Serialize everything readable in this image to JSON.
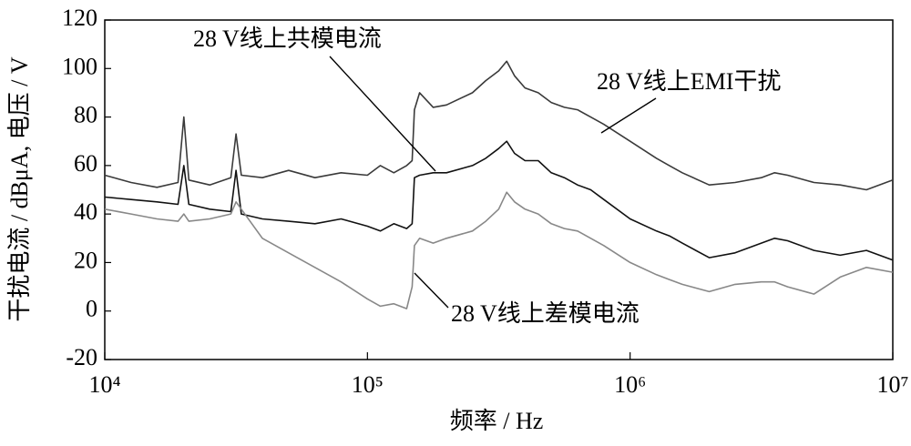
{
  "chart_data": {
    "type": "line",
    "x_label": "频率 / Hz",
    "y_label": "干扰电流 / dBμA, 电压 / V",
    "x_log": true,
    "xlim": [
      10000,
      10000000
    ],
    "xticks": [
      {
        "value": 10000,
        "label": "10⁴"
      },
      {
        "value": 100000,
        "label": "10⁵"
      },
      {
        "value": 1000000,
        "label": "10⁶"
      },
      {
        "value": 10000000,
        "label": "10⁷"
      }
    ],
    "ylim": [
      -20,
      120
    ],
    "yticks": [
      -20,
      0,
      20,
      40,
      60,
      80,
      100,
      120
    ],
    "grid": false,
    "x": [
      10000,
      12600,
      15800,
      19000,
      20000,
      20900,
      25100,
      30200,
      31600,
      33100,
      39800,
      50100,
      63100,
      79400,
      100000,
      112000,
      126000,
      141000,
      148000,
      151000,
      158000,
      178000,
      200000,
      251000,
      282000,
      316000,
      339000,
      363000,
      398000,
      447000,
      501000,
      562000,
      631000,
      708000,
      794000,
      1000000,
      1260000,
      1410000,
      1580000,
      2000000,
      2510000,
      3160000,
      3550000,
      3980000,
      5010000,
      6310000,
      7940000,
      10000000
    ],
    "series": [
      {
        "name": "28 V线上EMI干扰",
        "color": "#3a3a3a",
        "values": [
          56,
          53,
          51,
          53,
          80,
          54,
          52,
          55,
          73,
          56,
          55,
          58,
          55,
          57,
          56,
          60,
          57,
          60,
          62,
          83,
          90,
          84,
          85,
          90,
          95,
          99,
          103,
          97,
          92,
          90,
          86,
          84,
          83,
          80,
          77,
          70,
          63,
          60,
          57,
          52,
          53,
          55,
          57,
          56,
          53,
          52,
          50,
          54
        ]
      },
      {
        "name": "28 V线上共模电流",
        "color": "#111111",
        "values": [
          47,
          46,
          45,
          44,
          60,
          44,
          42,
          41,
          58,
          40,
          38,
          37,
          36,
          38,
          35,
          33,
          36,
          34,
          36,
          55,
          56,
          57,
          57,
          60,
          63,
          67,
          70,
          65,
          62,
          62,
          57,
          55,
          52,
          50,
          46,
          38,
          33,
          31,
          28,
          22,
          24,
          28,
          30,
          29,
          25,
          23,
          25,
          21
        ]
      },
      {
        "name": "28 V线上差模电流",
        "color": "#888888",
        "values": [
          42,
          40,
          38,
          37,
          40,
          37,
          38,
          40,
          45,
          42,
          30,
          24,
          18,
          12,
          5,
          2,
          3,
          1,
          10,
          27,
          30,
          28,
          30,
          33,
          37,
          42,
          49,
          45,
          42,
          40,
          36,
          34,
          33,
          30,
          27,
          20,
          15,
          13,
          11,
          8,
          11,
          12,
          12,
          10,
          7,
          14,
          18,
          16
        ]
      }
    ]
  }
}
